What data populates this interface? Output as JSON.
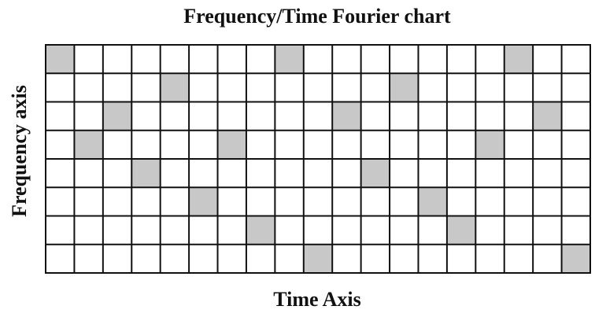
{
  "title": "Frequency/Time Fourier chart",
  "x_axis_label": "Time Axis",
  "y_axis_label": "Frequency axis",
  "grid": {
    "columns": 19,
    "rows": 8,
    "shaded_rows": [
      0,
      3,
      2,
      4,
      1,
      5,
      3,
      6,
      0,
      7,
      2,
      4,
      1,
      5,
      6,
      3,
      0,
      2,
      7
    ],
    "shade_color": "#c8c8c8"
  }
}
